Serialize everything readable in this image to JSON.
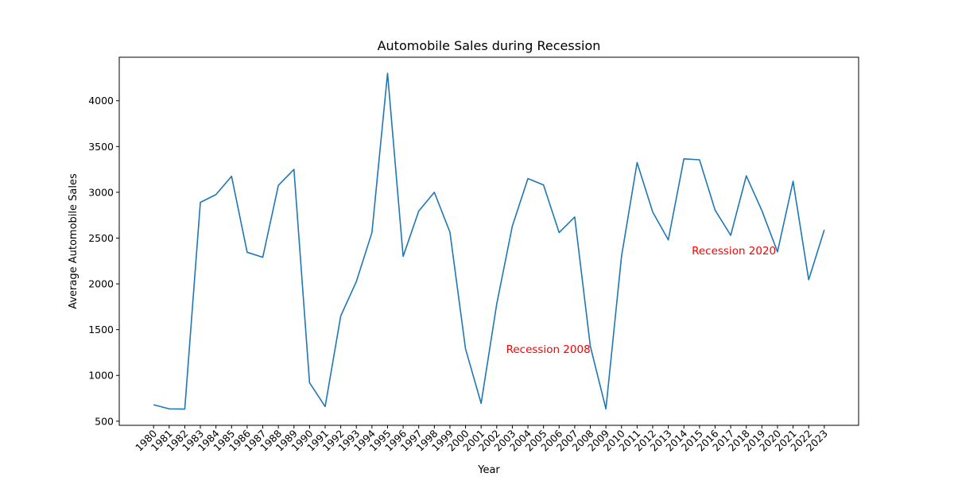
{
  "chart_data": {
    "type": "line",
    "title": "Automobile Sales during Recession",
    "xlabel": "Year",
    "ylabel": "Average Automobile Sales",
    "x": [
      1980,
      1981,
      1982,
      1983,
      1984,
      1985,
      1986,
      1987,
      1988,
      1989,
      1990,
      1991,
      1992,
      1993,
      1994,
      1995,
      1996,
      1997,
      1998,
      1999,
      2000,
      2001,
      2002,
      2003,
      2004,
      2005,
      2006,
      2007,
      2008,
      2009,
      2010,
      2011,
      2012,
      2013,
      2014,
      2015,
      2016,
      2017,
      2018,
      2019,
      2020,
      2021,
      2022,
      2023
    ],
    "series": [
      {
        "values": [
          680,
          635,
          632,
          2890,
          2975,
          3175,
          2345,
          2290,
          3075,
          3250,
          920,
          660,
          1650,
          2025,
          2560,
          4300,
          2300,
          2795,
          3000,
          2565,
          1290,
          695,
          1780,
          2630,
          3150,
          3080,
          2560,
          2730,
          1320,
          635,
          2300,
          3325,
          2785,
          2480,
          3365,
          3355,
          2805,
          2530,
          3180,
          2800,
          2350,
          3120,
          2045,
          2590
        ]
      }
    ],
    "ylim": [
      455,
      4475
    ],
    "yticks": [
      500,
      1000,
      1500,
      2000,
      2500,
      3000,
      3500,
      4000
    ],
    "grid": false,
    "line_color": "#1f77b4",
    "annotations": [
      {
        "text": "Recession 2008",
        "x": 2002.6,
        "y": 1290,
        "color": "#ff0000"
      },
      {
        "text": "Recession 2020",
        "x": 2014.5,
        "y": 2365,
        "color": "#ff0000"
      }
    ]
  }
}
